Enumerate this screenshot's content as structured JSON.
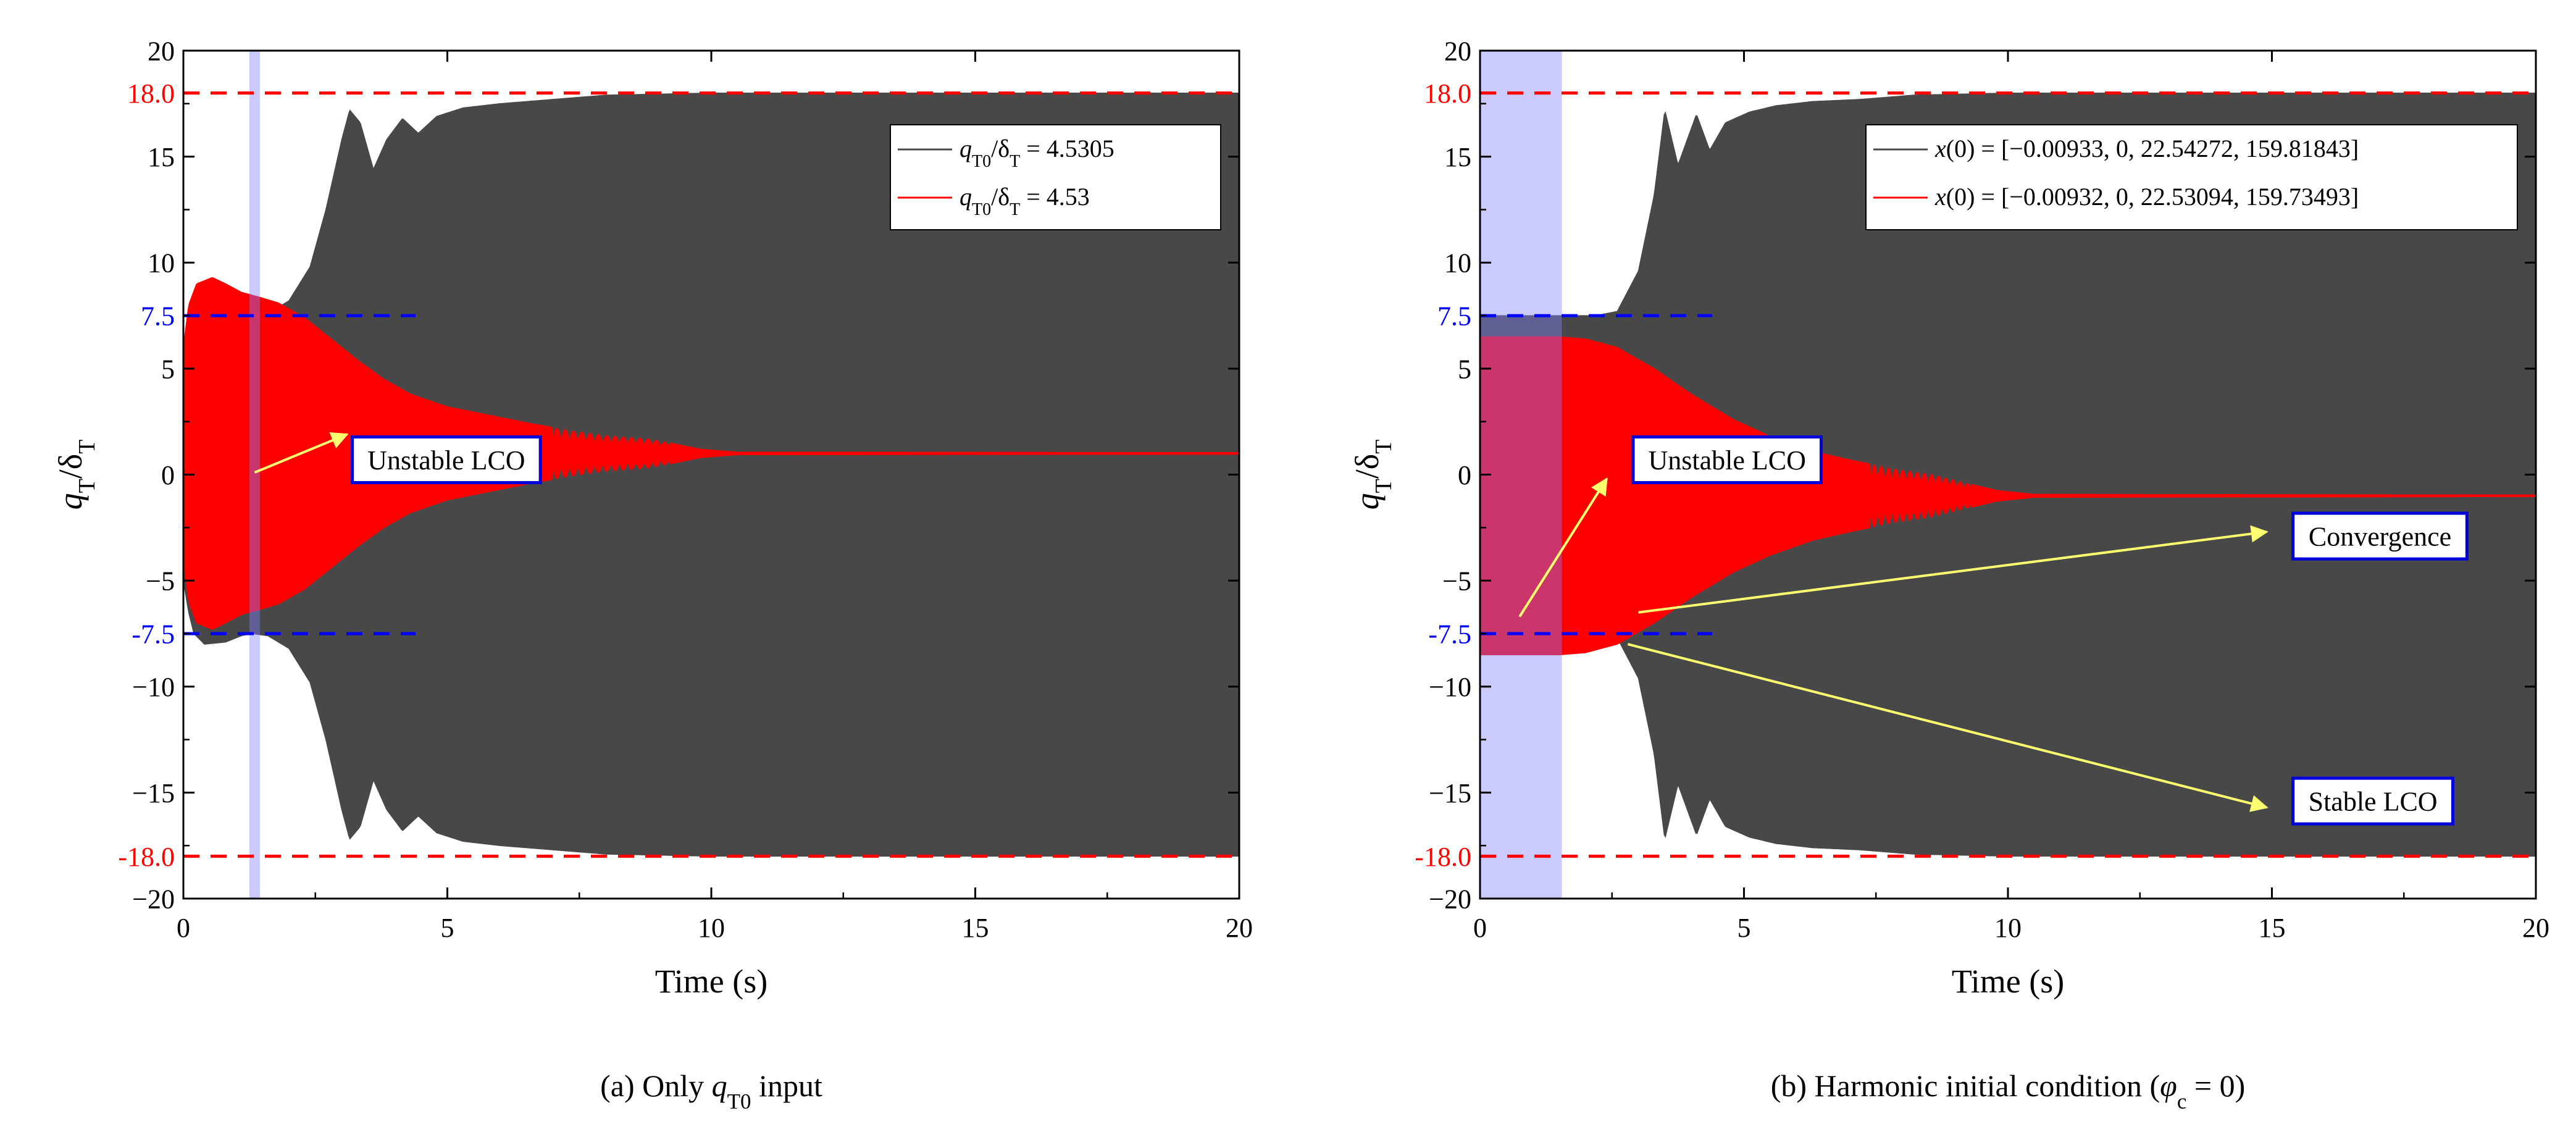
{
  "chart_data": [
    {
      "type": "line",
      "subtitle": "(a)  Only q_T0 input",
      "caption": {
        "prefix": "(a)  Only ",
        "var": "q",
        "sub": "T0",
        "suffix": " input"
      },
      "xlabel": "Time (s)",
      "ylabel": "q_T/δ_T",
      "xlim": [
        0,
        20
      ],
      "ylim": [
        -20,
        20
      ],
      "xticks": [
        0,
        5,
        10,
        15,
        20
      ],
      "yticks": [
        -20,
        -15,
        -10,
        -5,
        0,
        5,
        10,
        15,
        20
      ],
      "ytick_labels": [
        "−20",
        "−15",
        "−10",
        "−5",
        "0",
        "5",
        "10",
        "15",
        "20"
      ],
      "shaded_region": {
        "x": [
          1.25,
          1.45
        ],
        "color": "#c8c8fa"
      },
      "series": [
        {
          "name": "q_T0/δ_T = 4.5305",
          "ratio_label": "q_T0/δ_T = 4.5305",
          "value": "4.5305",
          "color": "#484848",
          "envelope": {
            "x": [
              0,
              0.1,
              0.2,
              0.4,
              0.8,
              1.1,
              1.3,
              1.6,
              2.0,
              2.4,
              2.7,
              3.0,
              3.15,
              3.35,
              3.6,
              3.85,
              4.15,
              4.45,
              4.8,
              5.3,
              6.0,
              7.0,
              8.0,
              10.0,
              20.0
            ],
            "y": [
              5.0,
              6.5,
              7.5,
              8.0,
              7.9,
              7.6,
              7.5,
              7.6,
              8.2,
              9.8,
              12.5,
              15.8,
              17.2,
              16.6,
              14.4,
              15.8,
              16.8,
              16.1,
              16.9,
              17.3,
              17.5,
              17.7,
              17.9,
              18.0,
              18.0
            ]
          }
        },
        {
          "name": "q_T0/δ_T = 4.53",
          "ratio_label": "q_T0/δ_T = 4.53",
          "value": "4.53",
          "color": "#ff0000",
          "envelope": {
            "x": [
              0,
              0.1,
              0.25,
              0.55,
              0.8,
              1.1,
              1.4,
              1.8,
              2.3,
              2.8,
              3.3,
              3.8,
              4.3,
              5.0,
              5.8,
              6.6,
              7.3,
              8.0,
              8.8,
              9.2,
              9.8,
              10.5,
              20.0
            ],
            "y": [
              5.0,
              7.0,
              8.0,
              8.3,
              8.0,
              7.6,
              7.4,
              7.1,
              6.4,
              5.4,
              4.4,
              3.5,
              2.8,
              2.2,
              1.8,
              1.4,
              1.1,
              0.85,
              0.7,
              0.5,
              0.2,
              0.06,
              0.04
            ]
          },
          "offset": 1.0,
          "beat_region": [
            7.0,
            9.2
          ]
        }
      ],
      "reference_lines": [
        {
          "y": 18.0,
          "label": "18.0",
          "color": "#ff0000",
          "x_end": 20
        },
        {
          "y": -18.0,
          "label": "-18.0",
          "color": "#ff0000",
          "x_end": 20
        },
        {
          "y": 7.5,
          "label": "7.5",
          "color": "#0000ff",
          "x_end": 4.4
        },
        {
          "y": -7.5,
          "label": "-7.5",
          "color": "#0000ff",
          "x_end": 4.4
        }
      ],
      "annotations": [
        {
          "text": "Unstable LCO",
          "box": [
            3.2,
            0.7
          ],
          "arrow_from": [
            1.35,
            0.1
          ],
          "arrow_to": [
            3.1,
            1.9
          ]
        }
      ]
    },
    {
      "type": "line",
      "subtitle": "(b)  Harmonic initial condition (φ_c = 0)",
      "caption": {
        "prefix": "(b)  Harmonic initial condition (",
        "var": "φ",
        "sub": "c",
        "suffix": " = 0)"
      },
      "xlabel": "Time (s)",
      "ylabel": "q_T/δ_T",
      "xlim": [
        0,
        20
      ],
      "ylim": [
        -20,
        20
      ],
      "xticks": [
        0,
        5,
        10,
        15,
        20
      ],
      "yticks": [
        -20,
        -15,
        -10,
        -5,
        0,
        5,
        10,
        15,
        20
      ],
      "ytick_labels": [
        "−20",
        "−15",
        "−10",
        "−5",
        "0",
        "5",
        "10",
        "15",
        "20"
      ],
      "shaded_region": {
        "x": [
          0,
          1.55
        ],
        "color": "#c8c8fa"
      },
      "series": [
        {
          "name": "x(0) = [−0.00933, 0, 22.54272, 159.81843]",
          "ratio_label": "x(0) = [−0.00933, 0, 22.54272, 159.81843]",
          "color": "#484848",
          "envelope": {
            "x": [
              0,
              1.0,
              2.2,
              2.6,
              3.0,
              3.3,
              3.5,
              3.75,
              4.1,
              4.35,
              4.65,
              5.1,
              5.6,
              6.3,
              7.2,
              8.2,
              10.0,
              20.0
            ],
            "y": [
              7.5,
              7.5,
              7.5,
              7.7,
              9.6,
              13.2,
              17.2,
              14.6,
              17.0,
              15.3,
              16.6,
              17.1,
              17.4,
              17.6,
              17.7,
              17.9,
              18.0,
              18.0
            ]
          }
        },
        {
          "name": "x(0) = [−0.00932, 0, 22.53094, 159.73493]",
          "ratio_label": "x(0) = [−0.00932, 0, 22.53094, 159.73493]",
          "color": "#ff0000",
          "envelope": {
            "x": [
              0,
              1.5,
              2.0,
              2.6,
              3.3,
              4.0,
              4.8,
              5.5,
              6.3,
              7.0,
              7.8,
              8.6,
              9.2,
              9.8,
              10.5,
              20.0
            ],
            "y": [
              7.5,
              7.5,
              7.4,
              7.0,
              6.0,
              4.8,
              3.6,
              2.8,
              2.1,
              1.7,
              1.3,
              1.0,
              0.6,
              0.25,
              0.07,
              0.04
            ]
          },
          "offset": -1.0,
          "beat_region": [
            7.4,
            9.3
          ]
        }
      ],
      "reference_lines": [
        {
          "y": 18.0,
          "label": "18.0",
          "color": "#ff0000",
          "x_end": 20
        },
        {
          "y": -18.0,
          "label": "-18.0",
          "color": "#ff0000",
          "x_end": 20
        },
        {
          "y": 7.5,
          "label": "7.5",
          "color": "#0000ff",
          "x_end": 4.4
        },
        {
          "y": -7.5,
          "label": "-7.5",
          "color": "#0000ff",
          "x_end": 4.4
        }
      ],
      "annotations": [
        {
          "text": "Unstable LCO",
          "box": [
            2.9,
            0.7
          ],
          "arrow_from": [
            0.75,
            -6.7
          ],
          "arrow_to": [
            2.4,
            -0.2
          ]
        },
        {
          "text": "Convergence",
          "box": [
            15.4,
            -2.9
          ],
          "arrow_from": [
            3.0,
            -6.5
          ],
          "arrow_to": [
            14.9,
            -2.7
          ]
        },
        {
          "text": "Stable LCO",
          "box": [
            15.4,
            -15.4
          ],
          "arrow_from": [
            2.8,
            -8.0
          ],
          "arrow_to": [
            14.9,
            -15.7
          ]
        }
      ]
    }
  ]
}
